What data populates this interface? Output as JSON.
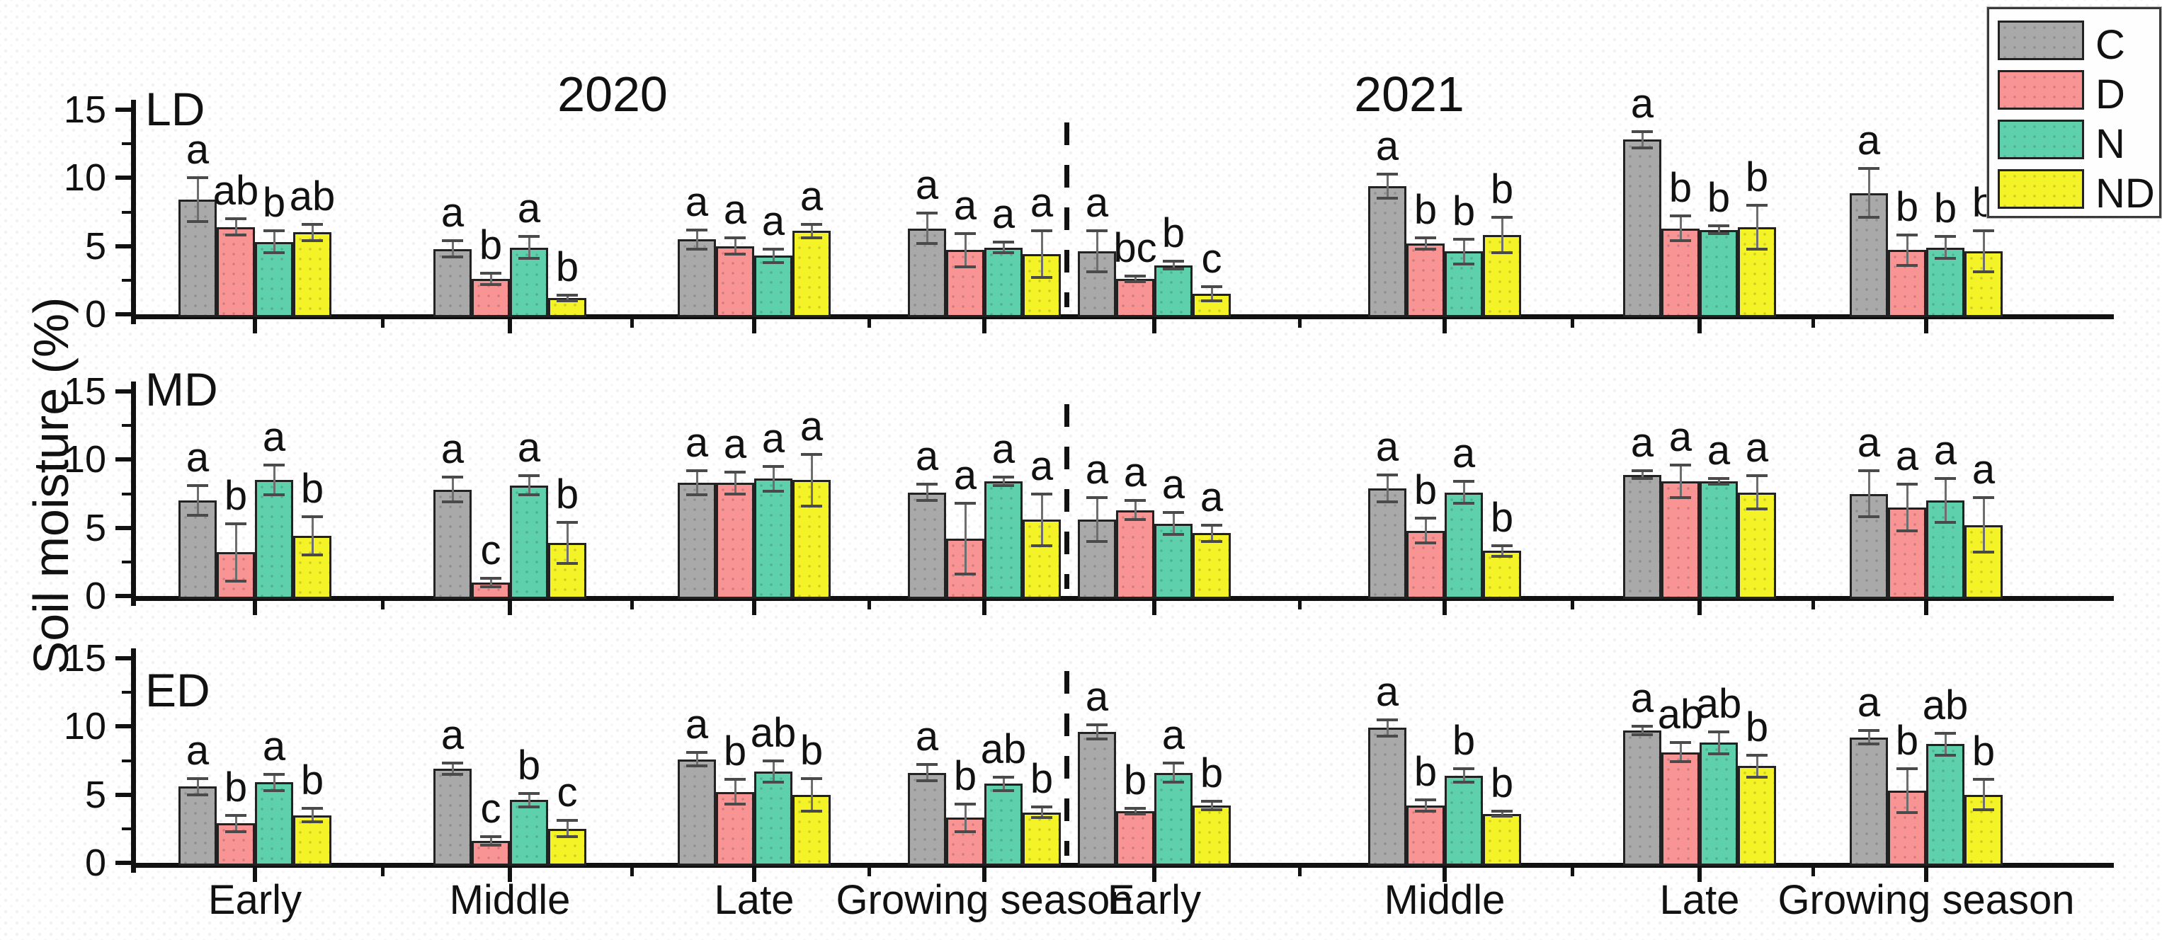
{
  "figure": {
    "ylabel": "Soil moisture (%)",
    "year_titles": [
      "2020",
      "2021"
    ],
    "x_categories": [
      "Early",
      "Middle",
      "Late",
      "Growing season",
      "Early",
      "Middle",
      "Late",
      "Growing season"
    ],
    "yticks": [
      "0",
      "5",
      "10",
      "15"
    ],
    "legend": {
      "items": [
        {
          "label": "C",
          "color": "#a9a9a9"
        },
        {
          "label": "D",
          "color": "#f89494"
        },
        {
          "label": "N",
          "color": "#5ed0ab"
        },
        {
          "label": "ND",
          "color": "#f3f327"
        }
      ]
    },
    "colors": {
      "axis": "#111111",
      "error_bar": "#5a5a5a",
      "bar_border": "#222222"
    }
  },
  "chart_data": [
    {
      "type": "bar",
      "panel": "LD",
      "categories": [
        "Early",
        "Middle",
        "Late",
        "Growing season",
        "Early",
        "Middle",
        "Late",
        "Growing season"
      ],
      "year_of_category": [
        "2020",
        "2020",
        "2020",
        "2020",
        "2021",
        "2021",
        "2021",
        "2021"
      ],
      "ylim": [
        0,
        15
      ],
      "yticks": [
        0,
        5,
        10,
        15
      ],
      "ylabel": "Soil moisture (%)",
      "series": [
        {
          "name": "C",
          "color": "#a9a9a9",
          "values": [
            8.4,
            4.8,
            5.5,
            6.3,
            4.6,
            9.4,
            12.8,
            8.9
          ],
          "errors": [
            1.6,
            0.6,
            0.7,
            1.1,
            1.5,
            0.9,
            0.6,
            1.8
          ],
          "letters": [
            "a",
            "a",
            "a",
            "a",
            "a",
            "a",
            "a",
            "a"
          ]
        },
        {
          "name": "D",
          "color": "#f89494",
          "values": [
            6.4,
            2.6,
            5.0,
            4.7,
            2.6,
            5.2,
            6.3,
            4.7
          ],
          "errors": [
            0.6,
            0.4,
            0.6,
            1.2,
            0.2,
            0.4,
            0.9,
            1.1
          ],
          "letters": [
            "ab",
            "b",
            "a",
            "a",
            "bc",
            "b",
            "b",
            "b"
          ]
        },
        {
          "name": "N",
          "color": "#5ed0ab",
          "values": [
            5.3,
            4.9,
            4.3,
            4.9,
            3.6,
            4.6,
            6.2,
            4.9
          ],
          "errors": [
            0.8,
            0.8,
            0.5,
            0.4,
            0.3,
            0.9,
            0.3,
            0.8
          ],
          "letters": [
            "b",
            "a",
            "a",
            "a",
            "b",
            "b",
            "b",
            "b"
          ]
        },
        {
          "name": "ND",
          "color": "#f3f327",
          "values": [
            6.0,
            1.2,
            6.1,
            4.4,
            1.5,
            5.8,
            6.4,
            4.6
          ],
          "errors": [
            0.6,
            0.2,
            0.5,
            1.7,
            0.5,
            1.3,
            1.6,
            1.5
          ],
          "letters": [
            "ab",
            "b",
            "a",
            "a",
            "c",
            "b",
            "b",
            "b"
          ]
        }
      ]
    },
    {
      "type": "bar",
      "panel": "MD",
      "categories": [
        "Early",
        "Middle",
        "Late",
        "Growing season",
        "Early",
        "Middle",
        "Late",
        "Growing season"
      ],
      "year_of_category": [
        "2020",
        "2020",
        "2020",
        "2020",
        "2021",
        "2021",
        "2021",
        "2021"
      ],
      "ylim": [
        0,
        15
      ],
      "yticks": [
        0,
        5,
        10,
        15
      ],
      "ylabel": "Soil moisture (%)",
      "series": [
        {
          "name": "C",
          "color": "#a9a9a9",
          "values": [
            7.0,
            7.8,
            8.3,
            7.6,
            5.6,
            7.9,
            8.9,
            7.5
          ],
          "errors": [
            1.1,
            0.9,
            0.9,
            0.6,
            1.6,
            1.0,
            0.3,
            1.7
          ],
          "letters": [
            "a",
            "a",
            "a",
            "a",
            "a",
            "a",
            "a",
            "a"
          ]
        },
        {
          "name": "D",
          "color": "#f89494",
          "values": [
            3.2,
            1.0,
            8.3,
            4.2,
            6.3,
            4.8,
            8.4,
            6.5
          ],
          "errors": [
            2.1,
            0.3,
            0.8,
            2.6,
            0.7,
            0.9,
            1.2,
            1.7
          ],
          "letters": [
            "b",
            "c",
            "a",
            "a",
            "a",
            "b",
            "a",
            "a"
          ]
        },
        {
          "name": "N",
          "color": "#5ed0ab",
          "values": [
            8.5,
            8.1,
            8.6,
            8.4,
            5.3,
            7.6,
            8.4,
            7.0
          ],
          "errors": [
            1.1,
            0.7,
            0.9,
            0.3,
            0.8,
            0.8,
            0.2,
            1.6
          ],
          "letters": [
            "a",
            "a",
            "a",
            "a",
            "a",
            "a",
            "a",
            "a"
          ]
        },
        {
          "name": "ND",
          "color": "#f3f327",
          "values": [
            4.4,
            3.9,
            8.5,
            5.6,
            4.6,
            3.3,
            7.6,
            5.2
          ],
          "errors": [
            1.4,
            1.5,
            1.9,
            1.9,
            0.6,
            0.4,
            1.2,
            2.0
          ],
          "letters": [
            "b",
            "b",
            "a",
            "a",
            "a",
            "b",
            "a",
            "a"
          ]
        }
      ]
    },
    {
      "type": "bar",
      "panel": "ED",
      "categories": [
        "Early",
        "Middle",
        "Late",
        "Growing season",
        "Early",
        "Middle",
        "Late",
        "Growing season"
      ],
      "year_of_category": [
        "2020",
        "2020",
        "2020",
        "2020",
        "2021",
        "2021",
        "2021",
        "2021"
      ],
      "ylim": [
        0,
        15
      ],
      "yticks": [
        0,
        5,
        10,
        15
      ],
      "ylabel": "Soil moisture (%)",
      "series": [
        {
          "name": "C",
          "color": "#a9a9a9",
          "values": [
            5.6,
            6.9,
            7.6,
            6.6,
            9.6,
            9.9,
            9.7,
            9.2
          ],
          "errors": [
            0.6,
            0.4,
            0.5,
            0.6,
            0.5,
            0.6,
            0.3,
            0.5
          ],
          "letters": [
            "a",
            "a",
            "a",
            "a",
            "a",
            "a",
            "a",
            "a"
          ]
        },
        {
          "name": "D",
          "color": "#f89494",
          "values": [
            2.9,
            1.6,
            5.2,
            3.3,
            3.8,
            4.2,
            8.1,
            5.3
          ],
          "errors": [
            0.6,
            0.3,
            0.9,
            1.0,
            0.2,
            0.4,
            0.7,
            1.6
          ],
          "letters": [
            "b",
            "c",
            "b",
            "b",
            "b",
            "b",
            "ab",
            "b"
          ]
        },
        {
          "name": "N",
          "color": "#5ed0ab",
          "values": [
            5.9,
            4.6,
            6.7,
            5.8,
            6.6,
            6.4,
            8.8,
            8.7
          ],
          "errors": [
            0.6,
            0.5,
            0.8,
            0.5,
            0.7,
            0.5,
            0.8,
            0.8
          ],
          "letters": [
            "a",
            "b",
            "ab",
            "ab",
            "a",
            "b",
            "ab",
            "ab"
          ]
        },
        {
          "name": "ND",
          "color": "#f3f327",
          "values": [
            3.5,
            2.5,
            5.0,
            3.7,
            4.2,
            3.6,
            7.1,
            5.0
          ],
          "errors": [
            0.5,
            0.6,
            1.2,
            0.4,
            0.3,
            0.2,
            0.8,
            1.1
          ],
          "letters": [
            "b",
            "c",
            "b",
            "b",
            "b",
            "b",
            "b",
            "b"
          ]
        }
      ]
    }
  ]
}
